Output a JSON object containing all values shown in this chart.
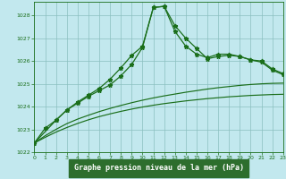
{
  "title": "Graphe pression niveau de la mer (hPa)",
  "background_color": "#c2e8ee",
  "plot_bg_color": "#c2e8ee",
  "line_color": "#1a6e1a",
  "grid_color": "#8bbfbf",
  "label_bg_color": "#2d6e2d",
  "label_text_color": "#ffffff",
  "xlim": [
    0,
    23
  ],
  "ylim": [
    1022,
    1028.6
  ],
  "yticks": [
    1022,
    1023,
    1024,
    1025,
    1026,
    1027,
    1028
  ],
  "xticks": [
    0,
    1,
    2,
    3,
    4,
    5,
    6,
    7,
    8,
    9,
    10,
    11,
    12,
    13,
    14,
    15,
    16,
    17,
    18,
    19,
    20,
    21,
    22,
    23
  ],
  "series_main1": {
    "x": [
      0,
      1,
      2,
      3,
      4,
      5,
      6,
      7,
      8,
      9,
      10,
      11,
      12,
      13,
      14,
      15,
      16,
      17,
      18,
      19,
      20,
      21,
      22,
      23
    ],
    "y": [
      1022.4,
      1023.05,
      1023.4,
      1023.85,
      1024.15,
      1024.45,
      1024.7,
      1024.95,
      1025.35,
      1025.85,
      1026.6,
      1028.35,
      1028.4,
      1027.55,
      1027.0,
      1026.55,
      1026.1,
      1026.2,
      1026.25,
      1026.2,
      1026.05,
      1026.0,
      1025.65,
      1025.45
    ]
  },
  "series_main2": {
    "x": [
      0,
      2,
      3,
      4,
      5,
      6,
      7,
      8,
      9,
      10,
      11,
      12,
      13,
      14,
      15,
      16,
      17,
      18,
      19,
      20,
      21,
      22,
      23
    ],
    "y": [
      1022.4,
      1023.4,
      1023.85,
      1024.2,
      1024.5,
      1024.8,
      1025.2,
      1025.7,
      1026.25,
      1026.65,
      1028.35,
      1028.4,
      1027.3,
      1026.65,
      1026.3,
      1026.15,
      1026.3,
      1026.3,
      1026.2,
      1026.05,
      1025.95,
      1025.6,
      1025.4
    ]
  },
  "series_smooth1": {
    "x": [
      0,
      1,
      2,
      3,
      4,
      5,
      6,
      7,
      8,
      9,
      10,
      11,
      12,
      13,
      14,
      15,
      16,
      17,
      18,
      19,
      20,
      21,
      22,
      23
    ],
    "y": [
      1022.4,
      1022.72,
      1023.0,
      1023.25,
      1023.45,
      1023.62,
      1023.78,
      1023.92,
      1024.05,
      1024.17,
      1024.28,
      1024.38,
      1024.47,
      1024.55,
      1024.63,
      1024.7,
      1024.77,
      1024.83,
      1024.88,
      1024.93,
      1024.97,
      1025.0,
      1025.02,
      1025.03
    ]
  },
  "series_smooth2": {
    "x": [
      0,
      1,
      2,
      3,
      4,
      5,
      6,
      7,
      8,
      9,
      10,
      11,
      12,
      13,
      14,
      15,
      16,
      17,
      18,
      19,
      20,
      21,
      22,
      23
    ],
    "y": [
      1022.4,
      1022.65,
      1022.88,
      1023.08,
      1023.26,
      1023.42,
      1023.56,
      1023.68,
      1023.79,
      1023.89,
      1023.98,
      1024.06,
      1024.13,
      1024.19,
      1024.25,
      1024.3,
      1024.35,
      1024.39,
      1024.43,
      1024.46,
      1024.49,
      1024.51,
      1024.53,
      1024.54
    ]
  }
}
